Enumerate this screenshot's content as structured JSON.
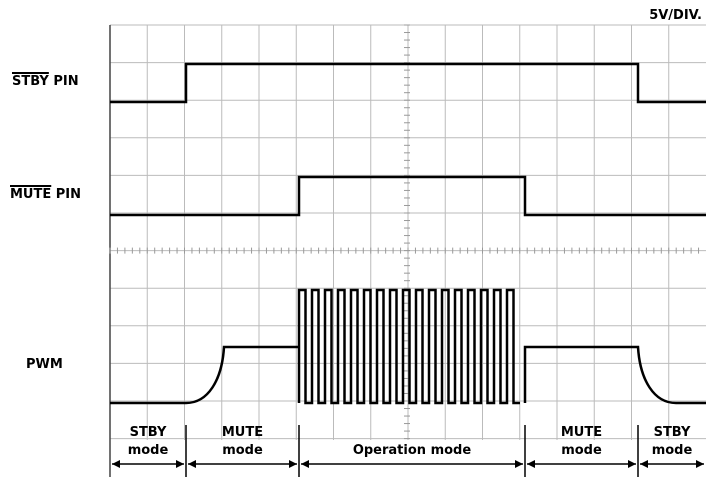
{
  "scale": "5V/DIV.",
  "signals": [
    {
      "name": "STBY",
      "suffix": "PIN"
    },
    {
      "name": "MUTE",
      "suffix": "PIN"
    },
    {
      "name": "PWM"
    }
  ],
  "modes": [
    {
      "lines": [
        "STBY",
        "mode"
      ]
    },
    {
      "lines": [
        "MUTE",
        "mode"
      ]
    },
    {
      "lines": [
        "Operation mode"
      ]
    },
    {
      "lines": [
        "MUTE",
        "mode"
      ]
    },
    {
      "lines": [
        "STBY",
        "mode"
      ]
    }
  ]
}
